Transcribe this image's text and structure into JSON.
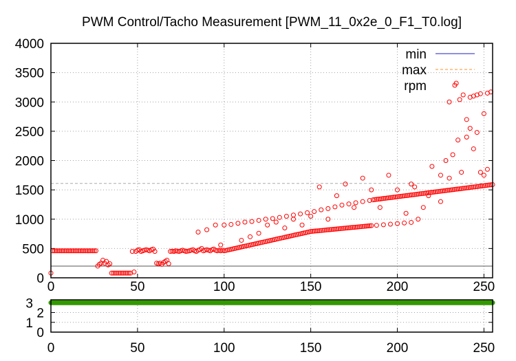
{
  "chart_data": [
    {
      "type": "scatter",
      "title": "PWM Control/Tacho Measurement [PWM_11_0x2e_0_F1_T0.log]",
      "xlim": [
        0,
        255
      ],
      "ylim": [
        0,
        4000
      ],
      "xticks": [
        0,
        50,
        100,
        150,
        200,
        250
      ],
      "yticks": [
        0,
        500,
        1000,
        1500,
        2000,
        2500,
        3000,
        3500,
        4000
      ],
      "grid": true,
      "legend_position": "top-right",
      "colors": {
        "min": "#2020c0",
        "max": "#ff9020",
        "rpm": "#ff0000"
      },
      "series": [
        {
          "name": "min",
          "type": "hline",
          "value": 200
        },
        {
          "name": "max",
          "type": "hline",
          "value": 1610
        },
        {
          "name": "rpm",
          "type": "points",
          "values": [
            80,
            460,
            460,
            460,
            460,
            460,
            460,
            460,
            460,
            460,
            460,
            460,
            460,
            460,
            460,
            460,
            460,
            460,
            460,
            460,
            460,
            460,
            460,
            460,
            460,
            460,
            460,
            200,
            230,
            250,
            300,
            250,
            280,
            220,
            240,
            80,
            80,
            80,
            80,
            80,
            80,
            80,
            80,
            80,
            80,
            80,
            80,
            450,
            100,
            450,
            470,
            480,
            450,
            460,
            470,
            480,
            470,
            460,
            480,
            490,
            450,
            250,
            240,
            250,
            230,
            260,
            280,
            300,
            240,
            450,
            455,
            450,
            460,
            455,
            450,
            460,
            470,
            460,
            450,
            455,
            460,
            470,
            480,
            460,
            450,
            470,
            480,
            500,
            460,
            470,
            480,
            470,
            460,
            480,
            490,
            470,
            460,
            470,
            460,
            470,
            460,
            467,
            473,
            480,
            486,
            493,
            500,
            506,
            513,
            519,
            526,
            533,
            539,
            546,
            552,
            559,
            566,
            572,
            579,
            585,
            592,
            599,
            605,
            612,
            618,
            625,
            632,
            638,
            645,
            651,
            658,
            665,
            671,
            678,
            684,
            691,
            698,
            704,
            711,
            717,
            724,
            731,
            737,
            744,
            750,
            757,
            764,
            770,
            777,
            783,
            790,
            793,
            796,
            799,
            801,
            804,
            807,
            810,
            813,
            816,
            819,
            821,
            824,
            827,
            830,
            833,
            836,
            839,
            841,
            844,
            847,
            850,
            853,
            856,
            859,
            861,
            864,
            867,
            870,
            873,
            876,
            879,
            881,
            884,
            887,
            890,
            1330,
            1334,
            1338,
            1341,
            1345,
            1349,
            1353,
            1356,
            1360,
            1364,
            1368,
            1371,
            1375,
            1379,
            1383,
            1387,
            1390,
            1394,
            1398,
            1402,
            1405,
            1409,
            1413,
            1417,
            1420,
            1424,
            1428,
            1432,
            1436,
            1439,
            1443,
            1447,
            1451,
            1454,
            1458,
            1462,
            1466,
            1469,
            1473,
            1477,
            1481,
            1485,
            1488,
            1492,
            1496,
            1500,
            1503,
            1507,
            1511,
            1515,
            1518,
            1522,
            1526,
            1530,
            1534,
            1537,
            1541,
            1545,
            1549,
            1552,
            1556,
            1560,
            1564,
            1567,
            1571,
            1575,
            1579,
            1583,
            1586,
            1590
          ],
          "extra_points": [
            [
              100,
              900
            ],
            [
              104,
              910
            ],
            [
              108,
              930
            ],
            [
              112,
              950
            ],
            [
              116,
              960
            ],
            [
              120,
              980
            ],
            [
              124,
              1000
            ],
            [
              128,
              1010
            ],
            [
              132,
              1030
            ],
            [
              136,
              1050
            ],
            [
              140,
              1070
            ],
            [
              144,
              1090
            ],
            [
              148,
              1110
            ],
            [
              152,
              1130
            ],
            [
              156,
              1160
            ],
            [
              160,
              1180
            ],
            [
              164,
              1210
            ],
            [
              168,
              1240
            ],
            [
              172,
              1260
            ],
            [
              176,
              1280
            ],
            [
              180,
              1300
            ],
            [
              184,
              1320
            ],
            [
              188,
              895
            ],
            [
              192,
              905
            ],
            [
              196,
              915
            ],
            [
              200,
              925
            ],
            [
              204,
              935
            ],
            [
              208,
              945
            ],
            [
              85,
              780
            ],
            [
              90,
              820
            ],
            [
              95,
              900
            ],
            [
              98,
              560
            ],
            [
              110,
              640
            ],
            [
              115,
              700
            ],
            [
              120,
              760
            ],
            [
              125,
              900
            ],
            [
              130,
              950
            ],
            [
              135,
              850
            ],
            [
              140,
              1000
            ],
            [
              145,
              900
            ],
            [
              150,
              1050
            ],
            [
              155,
              1550
            ],
            [
              160,
              1000
            ],
            [
              165,
              1400
            ],
            [
              170,
              1600
            ],
            [
              175,
              1200
            ],
            [
              180,
              1700
            ],
            [
              185,
              1500
            ],
            [
              190,
              1200
            ],
            [
              195,
              1750
            ],
            [
              200,
              1500
            ],
            [
              205,
              1100
            ],
            [
              210,
              1550
            ],
            [
              215,
              1200
            ],
            [
              220,
              1900
            ],
            [
              225,
              1300
            ],
            [
              228,
              2000
            ],
            [
              230,
              1700
            ],
            [
              232,
              2100
            ],
            [
              235,
              2350
            ],
            [
              237,
              1800
            ],
            [
              240,
              2400
            ],
            [
              242,
              2550
            ],
            [
              244,
              2200
            ],
            [
              246,
              2480
            ],
            [
              248,
              1800
            ],
            [
              250,
              1750
            ],
            [
              252,
              1850
            ],
            [
              230,
              3000
            ],
            [
              234,
              3320
            ],
            [
              236,
              3040
            ],
            [
              238,
              3120
            ],
            [
              240,
              2700
            ],
            [
              242,
              3080
            ],
            [
              244,
              3100
            ],
            [
              246,
              3120
            ],
            [
              248,
              3140
            ],
            [
              250,
              2800
            ],
            [
              252,
              3150
            ],
            [
              254,
              3170
            ],
            [
              225,
              1750
            ],
            [
              218,
              1400
            ],
            [
              212,
              1000
            ],
            [
              208,
              1600
            ]
          ]
        }
      ]
    },
    {
      "type": "line",
      "xlim": [
        0,
        255
      ],
      "ylim": [
        0,
        3.3
      ],
      "xticks": [
        0,
        50,
        100,
        150,
        200,
        250
      ],
      "yticks": [
        0,
        1,
        2,
        3
      ],
      "grid": true,
      "color": "#339900",
      "series": [
        {
          "name": "pwm_state",
          "x_range": [
            0,
            255
          ],
          "value": 3
        }
      ]
    }
  ]
}
